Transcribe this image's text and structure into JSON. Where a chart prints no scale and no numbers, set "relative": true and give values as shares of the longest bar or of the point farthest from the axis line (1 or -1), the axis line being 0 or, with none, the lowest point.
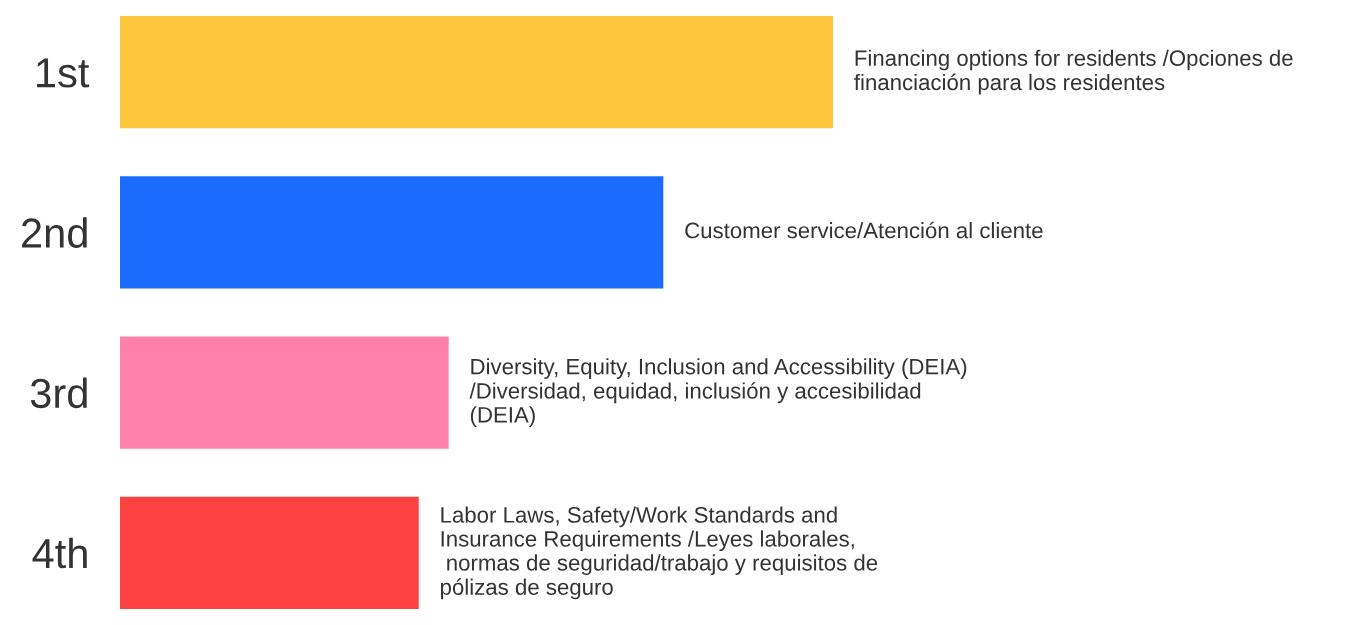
{
  "chart_data": {
    "type": "bar",
    "orientation": "horizontal",
    "relative": true,
    "categories": [
      "1st",
      "2nd",
      "3rd",
      "4th"
    ],
    "values": [
      1,
      0.762,
      0.461,
      0.419
    ],
    "colors": [
      "#fcc53b",
      "#1b6bff",
      "#ff80aa",
      "#ff4141"
    ],
    "annotations": [
      {
        "text": "Financing options for residents /Opciones de\nfinanciación para los residentes",
        "x": 1,
        "y": "1st"
      },
      {
        "text": "Customer service/Atención al cliente",
        "x": 0.762,
        "y": "2nd"
      },
      {
        "text": "Diversity, Equity, Inclusion and Accessibility (DEIA)\n/Diversidad, equidad, inclusión y accesibilidad\n(DEIA)",
        "x": 0.461,
        "y": "3rd"
      },
      {
        "text": "Labor Laws, Safety/Work Standards and\nInsurance Requirements /Leyes laborales,\n normas de seguridad/trabajo y requisitos de\npólizas de seguro",
        "x": 0.419,
        "y": "4th"
      }
    ],
    "grid": false,
    "legend": false
  }
}
